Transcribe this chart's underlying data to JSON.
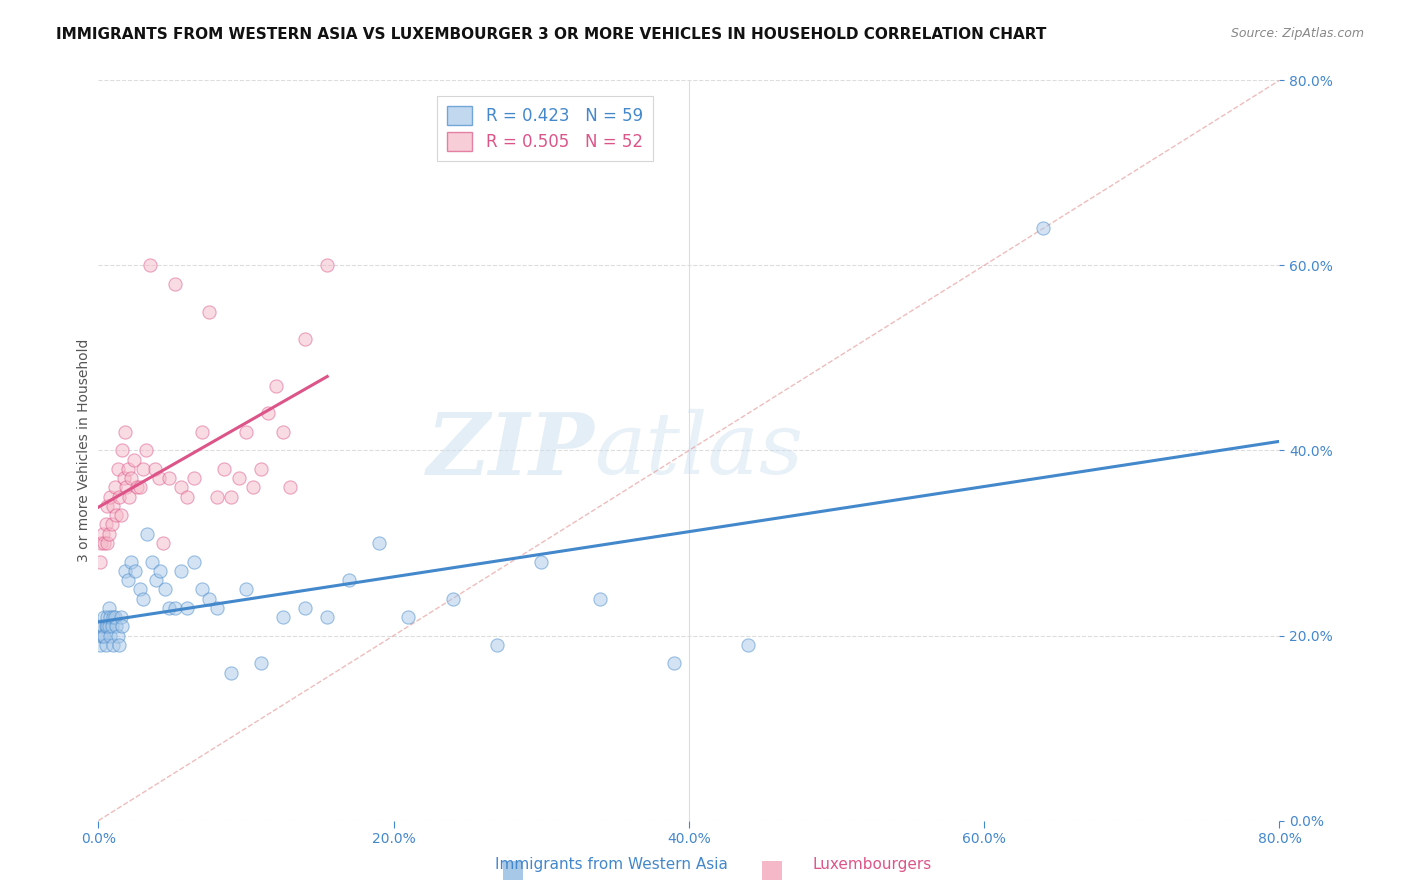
{
  "title": "IMMIGRANTS FROM WESTERN ASIA VS LUXEMBOURGER 3 OR MORE VEHICLES IN HOUSEHOLD CORRELATION CHART",
  "source": "Source: ZipAtlas.com",
  "ylabel": "3 or more Vehicles in Household",
  "legend_label_1": "Immigrants from Western Asia",
  "legend_label_2": "Luxembourgers",
  "r1": 0.423,
  "n1": 59,
  "r2": 0.505,
  "n2": 52,
  "xlim": [
    0.0,
    0.8
  ],
  "ylim": [
    0.0,
    0.8
  ],
  "color_blue": "#a8c8e8",
  "color_pink": "#f4b8c8",
  "color_blue_line": "#4488cc",
  "color_pink_line": "#dd5588",
  "color_blue_text": "#4488cc",
  "color_pink_text": "#dd5588",
  "color_diagonal": "#ddbbbb",
  "background_color": "#ffffff",
  "title_fontsize": 11,
  "axis_label_fontsize": 10,
  "tick_fontsize": 10,
  "watermark_zip": "ZIP",
  "watermark_atlas": "atlas",
  "blue_x": [
    0.001,
    0.002,
    0.002,
    0.003,
    0.003,
    0.004,
    0.004,
    0.005,
    0.005,
    0.006,
    0.006,
    0.007,
    0.007,
    0.008,
    0.008,
    0.009,
    0.01,
    0.01,
    0.011,
    0.012,
    0.013,
    0.014,
    0.015,
    0.016,
    0.018,
    0.02,
    0.022,
    0.025,
    0.028,
    0.03,
    0.033,
    0.036,
    0.039,
    0.042,
    0.045,
    0.048,
    0.052,
    0.056,
    0.06,
    0.065,
    0.07,
    0.075,
    0.08,
    0.09,
    0.1,
    0.11,
    0.125,
    0.14,
    0.155,
    0.17,
    0.19,
    0.21,
    0.24,
    0.27,
    0.3,
    0.34,
    0.39,
    0.44,
    0.64
  ],
  "blue_y": [
    0.19,
    0.21,
    0.2,
    0.2,
    0.21,
    0.22,
    0.2,
    0.21,
    0.19,
    0.21,
    0.22,
    0.23,
    0.21,
    0.22,
    0.2,
    0.21,
    0.19,
    0.22,
    0.22,
    0.21,
    0.2,
    0.19,
    0.22,
    0.21,
    0.27,
    0.26,
    0.28,
    0.27,
    0.25,
    0.24,
    0.31,
    0.28,
    0.26,
    0.27,
    0.25,
    0.23,
    0.23,
    0.27,
    0.23,
    0.28,
    0.25,
    0.24,
    0.23,
    0.16,
    0.25,
    0.17,
    0.22,
    0.23,
    0.22,
    0.26,
    0.3,
    0.22,
    0.24,
    0.19,
    0.28,
    0.24,
    0.17,
    0.19,
    0.64
  ],
  "pink_x": [
    0.001,
    0.002,
    0.003,
    0.004,
    0.005,
    0.006,
    0.006,
    0.007,
    0.008,
    0.009,
    0.01,
    0.011,
    0.012,
    0.013,
    0.014,
    0.015,
    0.016,
    0.017,
    0.018,
    0.019,
    0.02,
    0.021,
    0.022,
    0.024,
    0.026,
    0.028,
    0.03,
    0.032,
    0.035,
    0.038,
    0.041,
    0.044,
    0.048,
    0.052,
    0.056,
    0.06,
    0.065,
    0.07,
    0.075,
    0.08,
    0.085,
    0.09,
    0.095,
    0.1,
    0.105,
    0.11,
    0.115,
    0.12,
    0.125,
    0.13,
    0.14,
    0.155
  ],
  "pink_y": [
    0.28,
    0.3,
    0.31,
    0.3,
    0.32,
    0.3,
    0.34,
    0.31,
    0.35,
    0.32,
    0.34,
    0.36,
    0.33,
    0.38,
    0.35,
    0.33,
    0.4,
    0.37,
    0.42,
    0.36,
    0.38,
    0.35,
    0.37,
    0.39,
    0.36,
    0.36,
    0.38,
    0.4,
    0.6,
    0.38,
    0.37,
    0.3,
    0.37,
    0.58,
    0.36,
    0.35,
    0.37,
    0.42,
    0.55,
    0.35,
    0.38,
    0.35,
    0.37,
    0.42,
    0.36,
    0.38,
    0.44,
    0.47,
    0.42,
    0.36,
    0.52,
    0.6
  ]
}
